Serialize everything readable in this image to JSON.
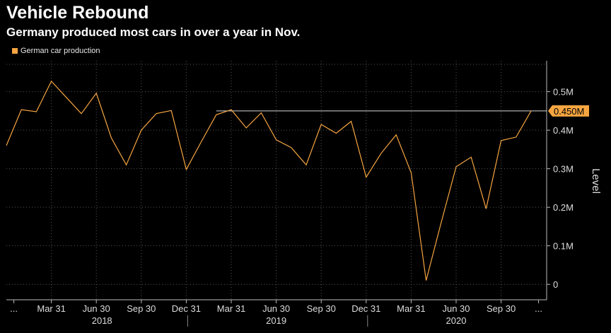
{
  "header": {
    "title": "Vehicle Rebound",
    "subtitle": "Germany produced most cars in over a year in Nov."
  },
  "colors": {
    "series": "#f6a541",
    "background": "#000000",
    "grid": "#555555"
  },
  "chart_data": {
    "type": "line",
    "title": "Vehicle Rebound",
    "subtitle": "Germany produced most cars in over a year in Nov.",
    "ylabel": "Level",
    "xlabel": "",
    "ylim": [
      -0.04,
      0.58
    ],
    "yticks": [
      {
        "value": 0.5,
        "label": "0.5M"
      },
      {
        "value": 0.4,
        "label": "0.4M"
      },
      {
        "value": 0.3,
        "label": "0.3M"
      },
      {
        "value": 0.2,
        "label": "0.2M"
      },
      {
        "value": 0.1,
        "label": "0.1M"
      },
      {
        "value": 0,
        "label": "0"
      }
    ],
    "xticks": [
      {
        "month": 0.5,
        "label": "..."
      },
      {
        "month": 3,
        "label": "Mar 31"
      },
      {
        "month": 6,
        "label": "Jun 30"
      },
      {
        "month": 9,
        "label": "Sep 30"
      },
      {
        "month": 12,
        "label": "Dec 31"
      },
      {
        "month": 15,
        "label": "Mar 31"
      },
      {
        "month": 18,
        "label": "Jun 30"
      },
      {
        "month": 21,
        "label": "Sep 30"
      },
      {
        "month": 24,
        "label": "Dec 31"
      },
      {
        "month": 27,
        "label": "Mar 31"
      },
      {
        "month": 30,
        "label": "Jun 30"
      },
      {
        "month": 33,
        "label": "Sep 30"
      },
      {
        "month": 35.5,
        "label": "..."
      }
    ],
    "years": [
      {
        "label": "2018",
        "start": 0,
        "end": 12
      },
      {
        "label": "2019",
        "start": 12,
        "end": 24
      },
      {
        "label": "2020",
        "start": 24,
        "end": 36
      }
    ],
    "grid": true,
    "legend_position": "top-left",
    "series": [
      {
        "name": "German car production",
        "x": [
          "2017-12",
          "2018-01",
          "2018-02",
          "2018-03",
          "2018-04",
          "2018-05",
          "2018-06",
          "2018-07",
          "2018-08",
          "2018-09",
          "2018-10",
          "2018-11",
          "2018-12",
          "2019-01",
          "2019-02",
          "2019-03",
          "2019-04",
          "2019-05",
          "2019-06",
          "2019-07",
          "2019-08",
          "2019-09",
          "2019-10",
          "2019-11",
          "2019-12",
          "2020-01",
          "2020-02",
          "2020-03",
          "2020-04",
          "2020-05",
          "2020-06",
          "2020-07",
          "2020-08",
          "2020-09",
          "2020-10",
          "2020-11"
        ],
        "values": [
          0.36,
          0.453,
          0.448,
          0.527,
          0.485,
          0.443,
          0.496,
          0.38,
          0.31,
          0.4,
          0.443,
          0.451,
          0.298,
          0.37,
          0.44,
          0.453,
          0.406,
          0.445,
          0.375,
          0.355,
          0.31,
          0.415,
          0.392,
          0.423,
          0.278,
          0.34,
          0.388,
          0.29,
          0.01,
          0.16,
          0.305,
          0.33,
          0.196,
          0.373,
          0.382,
          0.45
        ]
      }
    ],
    "reference_line": {
      "value": 0.45,
      "from": "2019-02",
      "label": "0.450M"
    }
  }
}
